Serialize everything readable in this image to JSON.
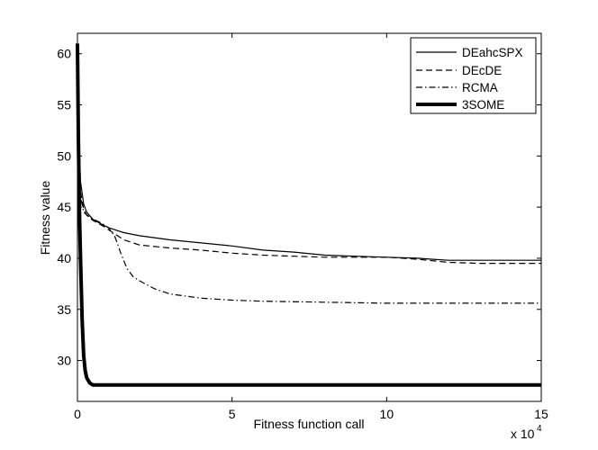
{
  "chart_data": {
    "type": "line",
    "title": "",
    "xlabel": "Fitness function call",
    "ylabel": "Fitness value",
    "x_multiplier_label": "x 10",
    "x_multiplier_exponent": "4",
    "xlim": [
      0,
      15
    ],
    "ylim": [
      26,
      62
    ],
    "xticks": [
      "0",
      "5",
      "10",
      "15"
    ],
    "yticks": [
      "30",
      "35",
      "40",
      "45",
      "50",
      "55",
      "60"
    ],
    "grid": false,
    "legend_position": "top-right",
    "series": [
      {
        "name": "DEahcSPX",
        "style": "solid",
        "x": [
          0,
          0.05,
          0.1,
          0.2,
          0.3,
          0.5,
          0.8,
          1.0,
          1.5,
          2.0,
          3.0,
          4.0,
          5.0,
          6.0,
          7.0,
          8.0,
          9.0,
          10.0,
          11.0,
          11.5,
          12.0,
          13.0,
          14.0,
          15.0
        ],
        "y": [
          60.5,
          52.0,
          47.5,
          45.3,
          44.5,
          43.8,
          43.3,
          43.0,
          42.5,
          42.2,
          41.8,
          41.5,
          41.2,
          40.8,
          40.6,
          40.3,
          40.2,
          40.1,
          40.0,
          39.9,
          39.8,
          39.8,
          39.8,
          39.8
        ]
      },
      {
        "name": "DEcDE",
        "style": "dashed",
        "x": [
          0,
          0.05,
          0.1,
          0.2,
          0.3,
          0.5,
          0.8,
          1.0,
          1.5,
          2.0,
          3.0,
          4.0,
          5.0,
          6.0,
          7.0,
          8.0,
          9.0,
          10.0,
          11.0,
          12.0,
          13.0,
          14.0,
          15.0
        ],
        "y": [
          61.0,
          50.0,
          46.5,
          44.8,
          44.2,
          43.7,
          43.2,
          42.8,
          41.8,
          41.3,
          41.0,
          40.8,
          40.5,
          40.3,
          40.2,
          40.1,
          40.1,
          40.1,
          39.9,
          39.6,
          39.5,
          39.5,
          39.5
        ]
      },
      {
        "name": "RCMA",
        "style": "dashdot",
        "x": [
          0,
          0.05,
          0.1,
          0.2,
          0.4,
          0.6,
          0.8,
          1.0,
          1.2,
          1.4,
          1.6,
          1.8,
          2.0,
          2.5,
          3.0,
          3.5,
          4.0,
          5.0,
          6.0,
          8.0,
          10.0,
          12.0,
          15.0
        ],
        "y": [
          61.0,
          49.0,
          46.0,
          44.5,
          44.0,
          43.7,
          43.4,
          43.0,
          42.2,
          40.5,
          39.0,
          38.2,
          37.8,
          37.0,
          36.5,
          36.3,
          36.1,
          35.9,
          35.8,
          35.7,
          35.6,
          35.6,
          35.6
        ]
      },
      {
        "name": "3SOME",
        "style": "thick",
        "x": [
          0,
          0.03,
          0.06,
          0.1,
          0.15,
          0.2,
          0.25,
          0.3,
          0.4,
          0.5,
          1.0,
          5.0,
          10.0,
          15.0
        ],
        "y": [
          61.0,
          52.0,
          45.0,
          40.0,
          34.0,
          30.5,
          29.0,
          28.3,
          27.8,
          27.6,
          27.6,
          27.6,
          27.6,
          27.6
        ]
      }
    ]
  },
  "legend": {
    "items": [
      "DEahcSPX",
      "DEcDE",
      "RCMA",
      "3SOME"
    ]
  }
}
